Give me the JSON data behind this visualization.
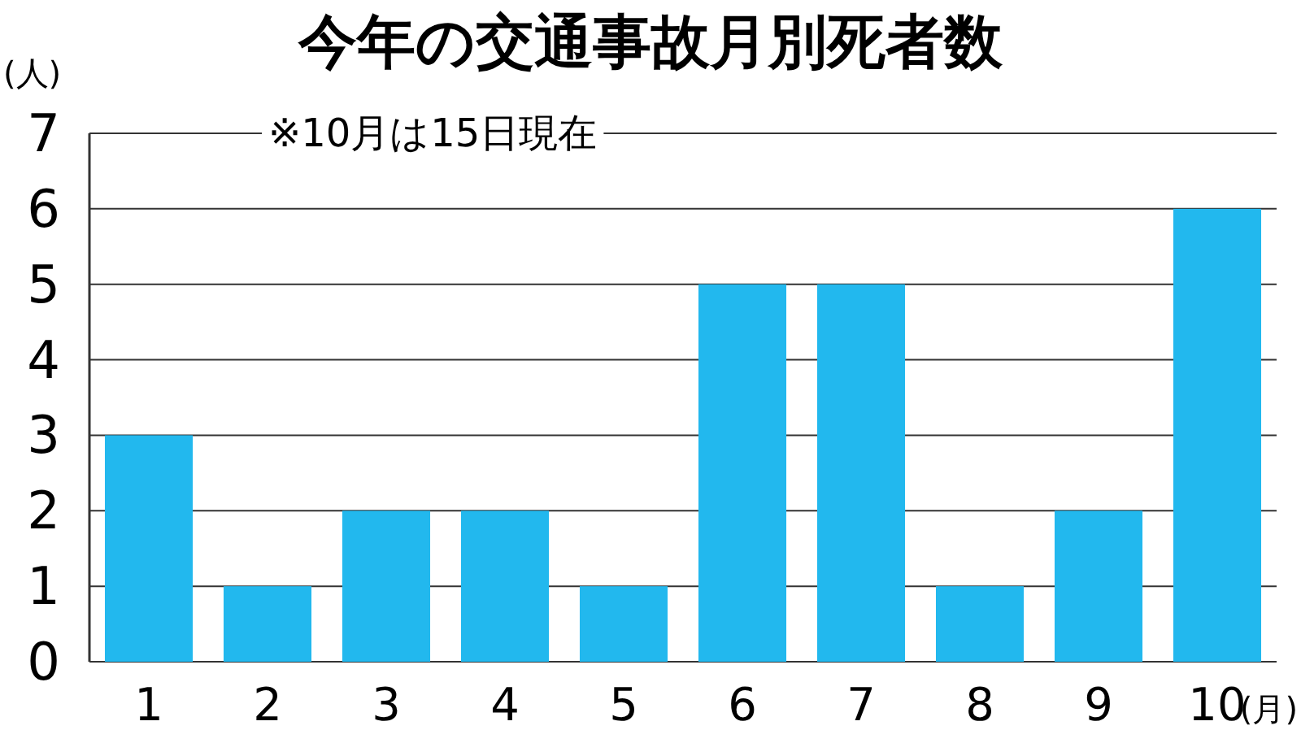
{
  "chart_data": {
    "type": "bar",
    "title": "今年の交通事故月別死者数",
    "annotations": [
      "※10月は15日現在"
    ],
    "ylabel": "(人)",
    "xlabel": "(月)",
    "categories": [
      "1",
      "2",
      "3",
      "4",
      "5",
      "6",
      "7",
      "8",
      "9",
      "10"
    ],
    "values": [
      3,
      1,
      2,
      2,
      1,
      5,
      5,
      1,
      2,
      6
    ],
    "color": "#22b8ee",
    "ylim": [
      0,
      7
    ],
    "yticks": [
      0,
      1,
      2,
      3,
      4,
      5,
      6,
      7
    ],
    "grid": "y"
  }
}
